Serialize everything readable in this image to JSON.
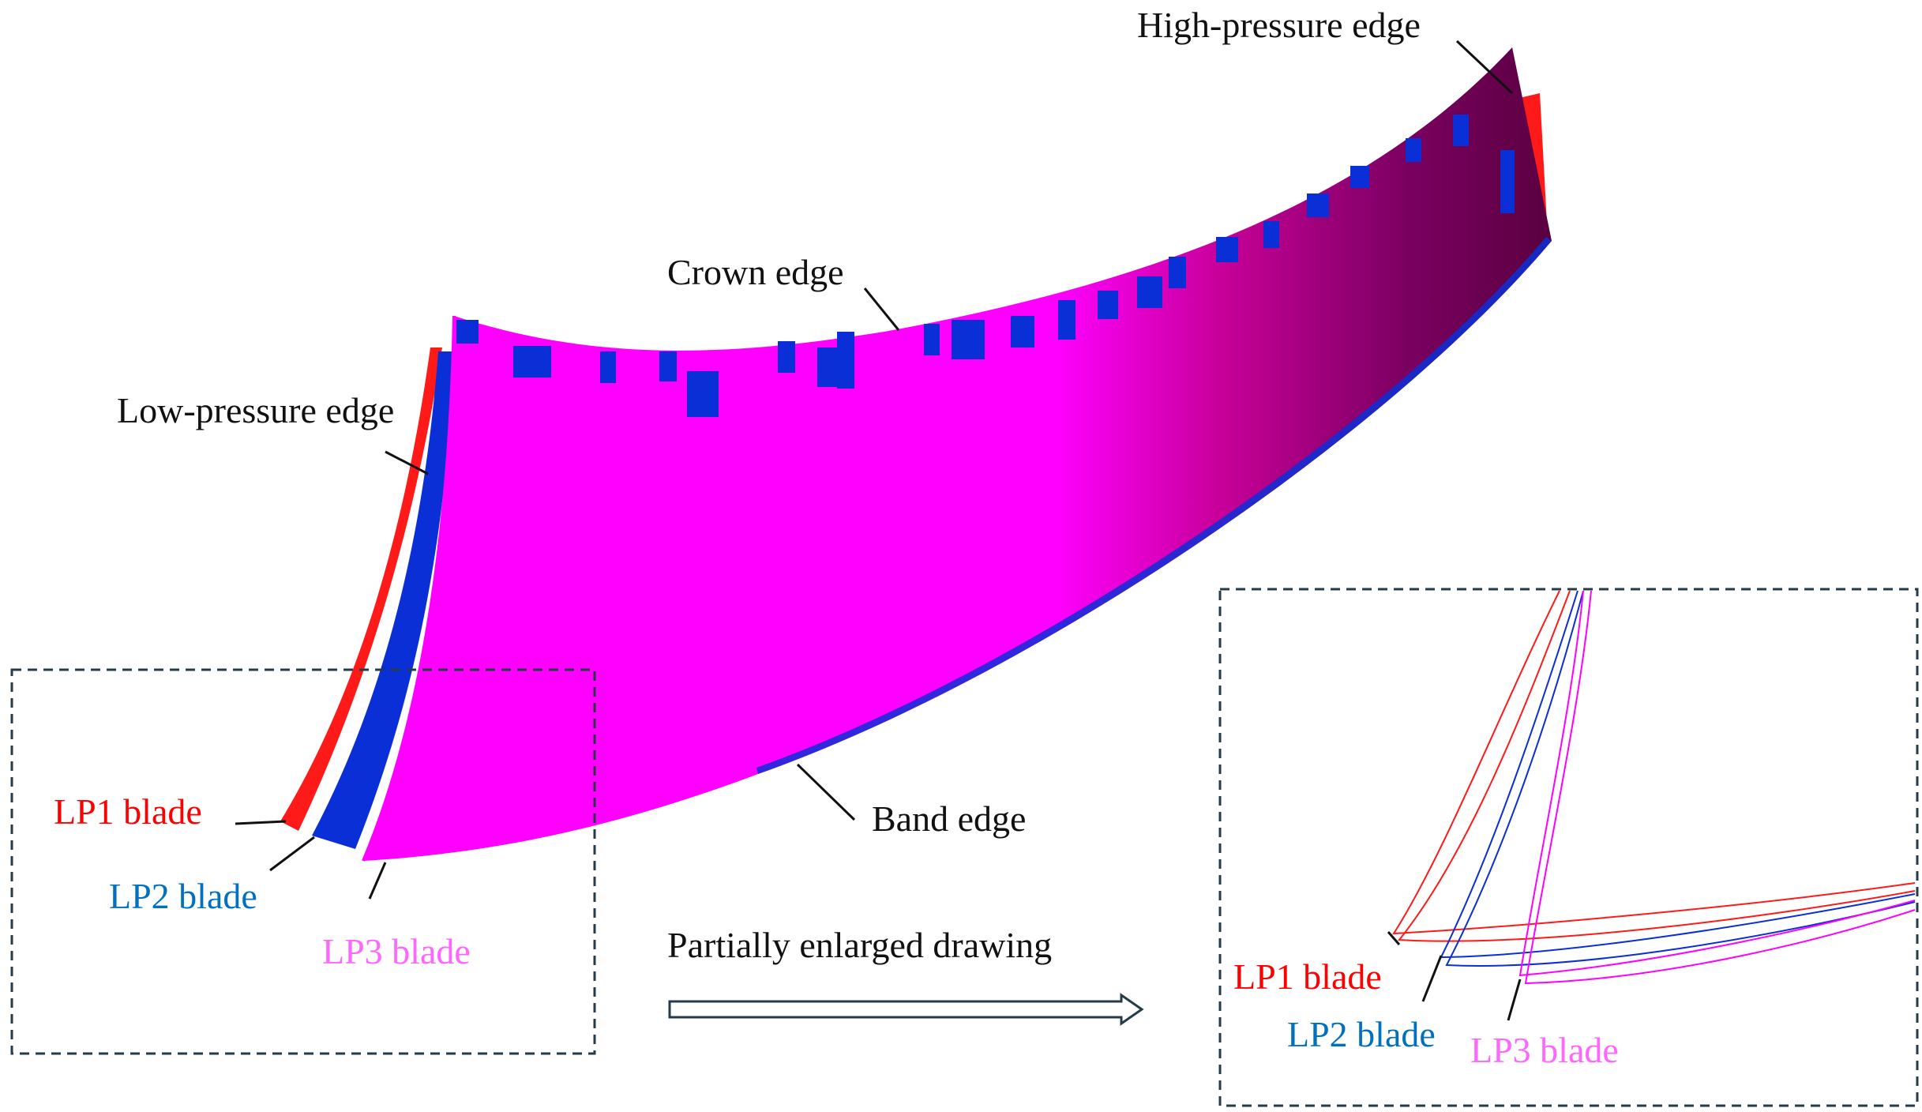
{
  "labels": {
    "high_pressure_edge": "High-pressure edge",
    "crown_edge": "Crown edge",
    "low_pressure_edge": "Low-pressure edge",
    "band_edge": "Band edge",
    "lp1_blade": "LP1 blade",
    "lp2_blade": "LP2 blade",
    "lp3_blade": "LP3 blade",
    "arrow_caption": "Partially enlarged drawing",
    "inset_lp1_blade": "LP1 blade",
    "inset_lp2_blade": "LP2 blade",
    "inset_lp3_blade": "LP3 blade"
  },
  "colors": {
    "lp1": "#ff1a1a",
    "lp2": "#0a2fd6",
    "lp3": "#ff00ff",
    "lp1_text": "#ff0000",
    "lp2_text": "#0070c0",
    "lp3_text": "#ff66ff",
    "dark_shade": "#5a0040",
    "frame": "#243b4a",
    "text": "#111111"
  }
}
